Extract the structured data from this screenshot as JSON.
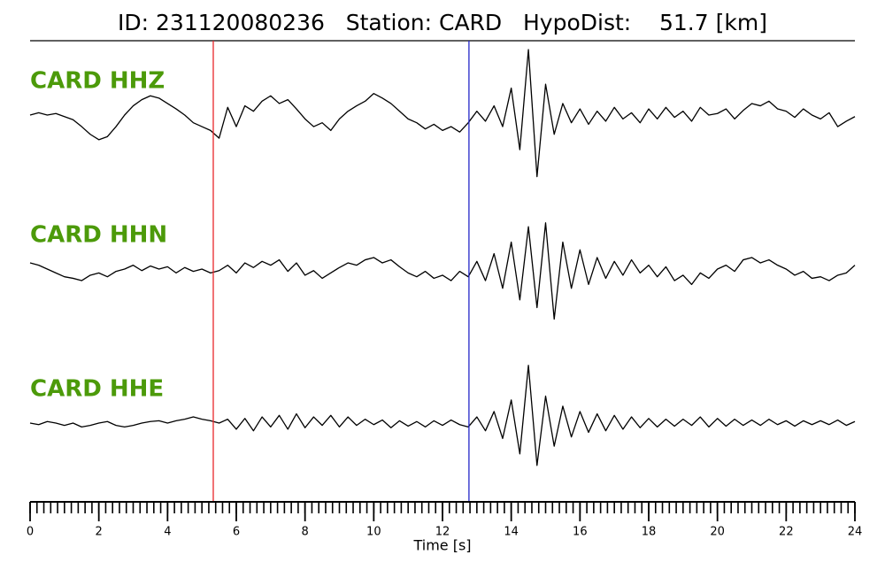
{
  "chart_data": {
    "type": "seismogram",
    "title": "ID: 231120080236   Station: CARD   HypoDist:    51.7 [km]",
    "xlabel": "Time [s]",
    "xlim": [
      0,
      24
    ],
    "xticks": [
      0,
      2,
      4,
      6,
      8,
      10,
      12,
      14,
      16,
      18,
      20,
      22,
      24
    ],
    "xminorticks": [
      0,
      0.2,
      0.4,
      0.6,
      0.8,
      1,
      1.2,
      1.4,
      1.6,
      1.8,
      2,
      2.2,
      2.4,
      2.6,
      2.8,
      3,
      3.2,
      3.4,
      3.6,
      3.8,
      4,
      4.2,
      4.4,
      4.6,
      4.8,
      5,
      5.2,
      5.4,
      5.6,
      5.8,
      6,
      6.2,
      6.4,
      6.6,
      6.8,
      7,
      7.2,
      7.4,
      7.6,
      7.8,
      8,
      8.2,
      8.4,
      8.6,
      8.8,
      9,
      9.2,
      9.4,
      9.6,
      9.8,
      10,
      10.2,
      10.4,
      10.6,
      10.8,
      11,
      11.2,
      11.4,
      11.6,
      11.8,
      12,
      12.2,
      12.4,
      12.6,
      12.8,
      13,
      13.2,
      13.4,
      13.6,
      13.8,
      14,
      14.2,
      14.4,
      14.6,
      14.8,
      15,
      15.2,
      15.4,
      15.6,
      15.8,
      16,
      16.2,
      16.4,
      16.6,
      16.8,
      17,
      17.2,
      17.4,
      17.6,
      17.8,
      18,
      18.2,
      18.4,
      18.6,
      18.8,
      19,
      19.2,
      19.4,
      19.6,
      19.8,
      20,
      20.2,
      20.4,
      20.6,
      20.8,
      21,
      21.2,
      21.4,
      21.6,
      21.8,
      22,
      22.2,
      22.4,
      22.6,
      22.8,
      23,
      23.2,
      23.4,
      23.6,
      23.8,
      24
    ],
    "ylim": [
      -100,
      100
    ],
    "picks": [
      {
        "value": 5.33,
        "color": "#e8262a"
      },
      {
        "value": 12.77,
        "color": "#2326c8"
      }
    ],
    "x": [
      0,
      0.25,
      0.5,
      0.75,
      1,
      1.25,
      1.5,
      1.75,
      2,
      2.25,
      2.5,
      2.75,
      3,
      3.25,
      3.5,
      3.75,
      4,
      4.25,
      4.5,
      4.75,
      5,
      5.25,
      5.5,
      5.75,
      6,
      6.25,
      6.5,
      6.75,
      7,
      7.25,
      7.5,
      7.75,
      8,
      8.25,
      8.5,
      8.75,
      9,
      9.25,
      9.5,
      9.75,
      10,
      10.25,
      10.5,
      10.75,
      11,
      11.25,
      11.5,
      11.75,
      12,
      12.25,
      12.5,
      12.75,
      13,
      13.25,
      13.5,
      13.75,
      14,
      14.25,
      14.5,
      14.75,
      15,
      15.25,
      15.5,
      15.75,
      16,
      16.25,
      16.5,
      16.75,
      17,
      17.25,
      17.5,
      17.75,
      18,
      18.25,
      18.5,
      18.75,
      19,
      19.25,
      19.5,
      19.75,
      20,
      20.25,
      20.5,
      20.75,
      21,
      21.25,
      21.5,
      21.75,
      22,
      22.25,
      22.5,
      22.75,
      23,
      23.25,
      23.5,
      23.75,
      24
    ],
    "series": [
      {
        "name": "CARD HHZ",
        "color": "#000000",
        "values": [
          0,
          3,
          0,
          2,
          -2,
          -6,
          -15,
          -25,
          -32,
          -28,
          -15,
          0,
          12,
          20,
          25,
          22,
          15,
          8,
          0,
          -10,
          -15,
          -20,
          -30,
          10,
          -15,
          12,
          5,
          18,
          25,
          15,
          20,
          8,
          -5,
          -15,
          -10,
          -20,
          -5,
          5,
          12,
          18,
          28,
          22,
          15,
          5,
          -5,
          -10,
          -18,
          -12,
          -20,
          -15,
          -22,
          -10,
          5,
          -8,
          12,
          -15,
          35,
          -45,
          85,
          -80,
          40,
          -25,
          15,
          -10,
          8,
          -12,
          5,
          -8,
          10,
          -5,
          3,
          -10,
          8,
          -5,
          10,
          -3,
          5,
          -8,
          10,
          0,
          2,
          8,
          -5,
          6,
          15,
          12,
          18,
          8,
          5,
          -3,
          8,
          0,
          -5,
          3,
          -15,
          -8,
          -2
        ]
      },
      {
        "name": "CARD HHN",
        "color": "#000000",
        "values": [
          8,
          5,
          0,
          -5,
          -10,
          -12,
          -15,
          -8,
          -5,
          -10,
          -3,
          0,
          5,
          -2,
          4,
          0,
          3,
          -5,
          2,
          -3,
          0,
          -5,
          -2,
          5,
          -5,
          8,
          2,
          10,
          5,
          12,
          -3,
          8,
          -8,
          -2,
          -12,
          -5,
          2,
          8,
          5,
          12,
          15,
          8,
          12,
          3,
          -5,
          -10,
          -3,
          -12,
          -8,
          -15,
          -3,
          -10,
          10,
          -15,
          20,
          -25,
          35,
          -40,
          55,
          -50,
          60,
          -65,
          35,
          -25,
          25,
          -20,
          15,
          -12,
          10,
          -8,
          12,
          -5,
          5,
          -10,
          3,
          -15,
          -8,
          -20,
          -5,
          -12,
          0,
          5,
          -3,
          12,
          15,
          8,
          12,
          5,
          0,
          -8,
          -3,
          -12,
          -10,
          -15,
          -8,
          -5,
          5
        ]
      },
      {
        "name": "CARD HHE",
        "color": "#000000",
        "values": [
          0,
          -2,
          2,
          0,
          -3,
          0,
          -5,
          -3,
          0,
          2,
          -3,
          -5,
          -3,
          0,
          2,
          3,
          0,
          3,
          5,
          8,
          5,
          3,
          0,
          5,
          -8,
          6,
          -10,
          8,
          -5,
          10,
          -8,
          12,
          -6,
          8,
          -3,
          10,
          -5,
          8,
          -3,
          5,
          -2,
          4,
          -6,
          3,
          -4,
          2,
          -5,
          3,
          -3,
          4,
          -2,
          -5,
          8,
          -10,
          15,
          -20,
          30,
          -40,
          75,
          -55,
          35,
          -30,
          22,
          -18,
          15,
          -12,
          12,
          -10,
          10,
          -8,
          8,
          -6,
          6,
          -5,
          5,
          -4,
          5,
          -3,
          8,
          -5,
          6,
          -4,
          5,
          -3,
          4,
          -3,
          5,
          -2,
          3,
          -4,
          3,
          -2,
          3,
          -2,
          4,
          -3,
          2
        ]
      }
    ]
  }
}
